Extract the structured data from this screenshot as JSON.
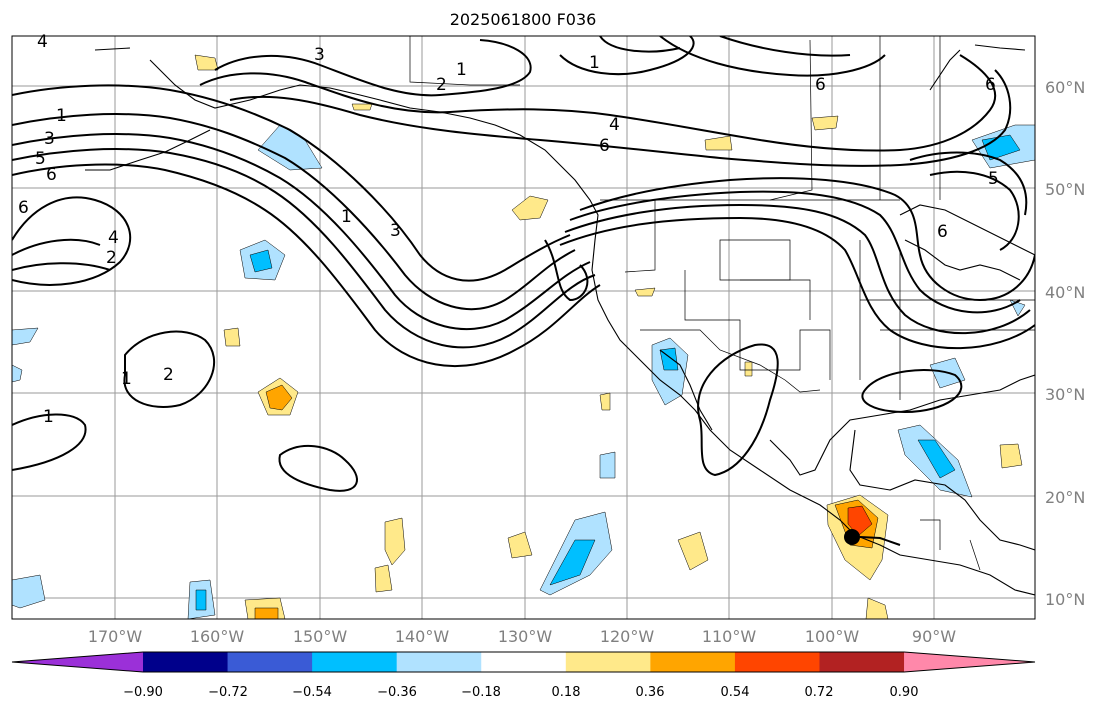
{
  "title": "2025061800 F036",
  "lat_labels": [
    "60°N",
    "50°N",
    "40°N",
    "30°N",
    "20°N",
    "10°N"
  ],
  "lon_labels": [
    "170°W",
    "160°W",
    "150°W",
    "140°W",
    "130°W",
    "120°W",
    "110°W",
    "100°W",
    "90°W"
  ],
  "colorbar": {
    "ticks": [
      "−0.90",
      "−0.72",
      "−0.54",
      "−0.36",
      "−0.18",
      "0.18",
      "0.36",
      "0.54",
      "0.72",
      "0.90"
    ],
    "colors": [
      "#9b30d8",
      "#00008b",
      "#3a5bd6",
      "#00bfff",
      "#b0e2ff",
      "#ffffff",
      "#ffe98a",
      "#ffa500",
      "#ff4500",
      "#b22222",
      "#ff88aa"
    ]
  },
  "contour_labels": [
    "4",
    "3",
    "2",
    "1",
    "1",
    "3",
    "5",
    "6",
    "6",
    "4",
    "2",
    "1",
    "3",
    "4",
    "6",
    "6",
    "1",
    "2",
    "1",
    "1",
    "5",
    "6",
    "6"
  ],
  "marker": {
    "icon": "storm-center-dot"
  }
}
